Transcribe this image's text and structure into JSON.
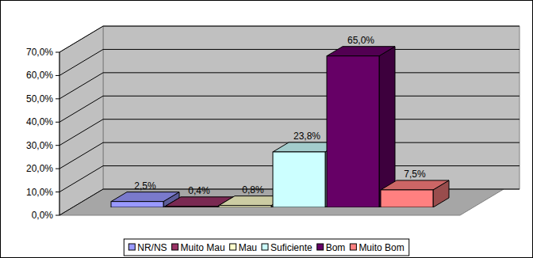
{
  "chart_data": {
    "type": "bar",
    "categories": [
      "NR/NS",
      "Muito Mau",
      "Mau",
      "Suficiente",
      "Bom",
      "Muito Bom"
    ],
    "values": [
      2.5,
      0.4,
      0.8,
      23.8,
      65.0,
      7.5
    ],
    "value_labels": [
      "2,5%",
      "0,4%",
      "0,8%",
      "23,8%",
      "65,0%",
      "7,5%"
    ],
    "colors": [
      "#9999ff",
      "#993366",
      "#ffffcc",
      "#ccffff",
      "#660066",
      "#ff8080"
    ],
    "ylim": [
      0,
      70
    ],
    "yticks": [
      {
        "value": 0,
        "label": "0,0%"
      },
      {
        "value": 10,
        "label": "10,0%"
      },
      {
        "value": 20,
        "label": "20,0%"
      },
      {
        "value": 30,
        "label": "30,0%"
      },
      {
        "value": 40,
        "label": "40,0%"
      },
      {
        "value": 50,
        "label": "50,0%"
      },
      {
        "value": 60,
        "label": "60,0%"
      },
      {
        "value": 70,
        "label": "70,0%"
      }
    ],
    "grid": true,
    "data_labels": true,
    "legend": "bottom",
    "tick_labels": "y"
  }
}
